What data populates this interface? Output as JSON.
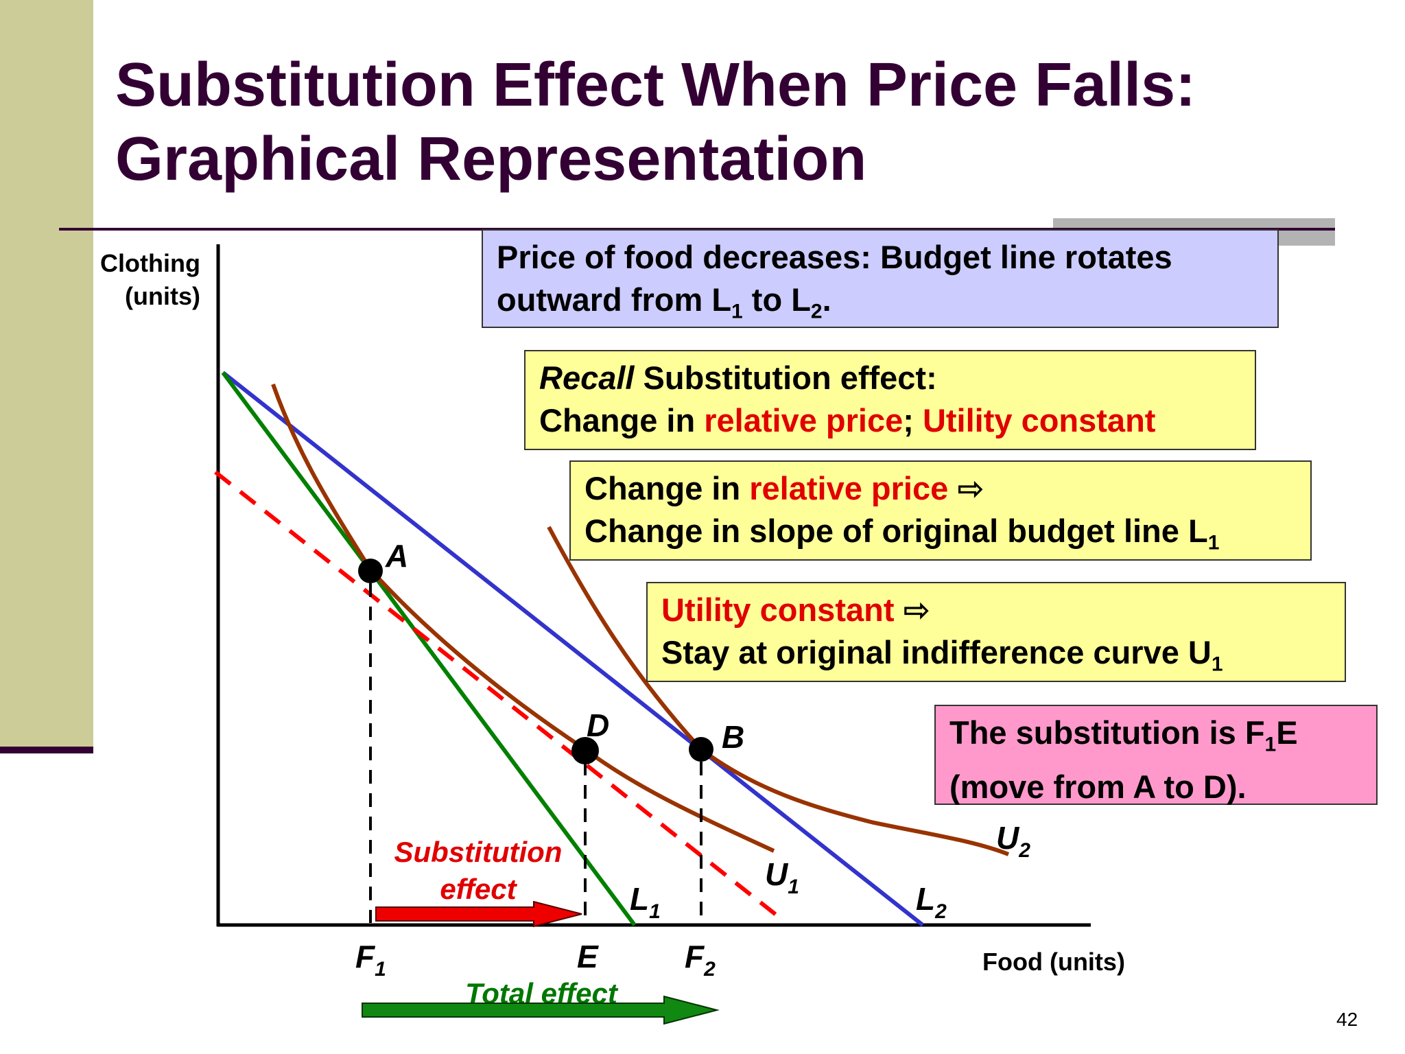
{
  "slide": {
    "title_line1": "Substitution Effect When Price Falls:",
    "title_line2": "Graphical Representation",
    "page_number": "42",
    "colors": {
      "title": "#330033",
      "sidebar": "#cccc99",
      "budget_L1": "#008000",
      "budget_L2": "#3333cc",
      "indifference": "#993300",
      "dashed_budget": "#ff0000",
      "substitution_text": "#e00000",
      "total_effect": "#007700"
    }
  },
  "boxes": {
    "price": {
      "line1": "Price of food decreases: Budget line rotates",
      "line2_pre": "outward from L",
      "sub1": "1",
      "line2_mid": " to L",
      "sub2": "2",
      "line2_post": "."
    },
    "recall": {
      "italic": "Recall",
      "rest": " Substitution effect:",
      "line2_pre": "Change in ",
      "line2_red1": "relative price",
      "line2_sep": "; ",
      "line2_red2": "Utility constant"
    },
    "relprice": {
      "red": "relative price",
      "pre": "Change in ",
      "arrow": " ⇨",
      "line2": "Change in slope of original budget line L",
      "sub": "1"
    },
    "utility": {
      "red": "Utility constant",
      "arrow": " ⇨",
      "line2": "Stay at original indifference curve U",
      "sub": "1"
    },
    "pink": {
      "line1_pre": "The substitution is F",
      "sub": "1",
      "line1_post": "E",
      "line2": "(move from A to D)."
    }
  },
  "graph": {
    "y_axis_label_line1": "Clothing",
    "y_axis_label_line2": "(units)",
    "x_axis_label": "Food (units)",
    "points": {
      "A": "A",
      "B": "B",
      "D": "D"
    },
    "ticks": {
      "F1": "F",
      "F1_sub": "1",
      "E": "E",
      "F2": "F",
      "F2_sub": "2"
    },
    "curves": {
      "U1": "U",
      "U1_sub": "1",
      "U2": "U",
      "U2_sub": "2",
      "L1": "L",
      "L1_sub": "1",
      "L2": "L",
      "L2_sub": "2"
    },
    "substitution_line1": "Substitution",
    "substitution_line2": "effect",
    "total_effect": "Total effect"
  }
}
